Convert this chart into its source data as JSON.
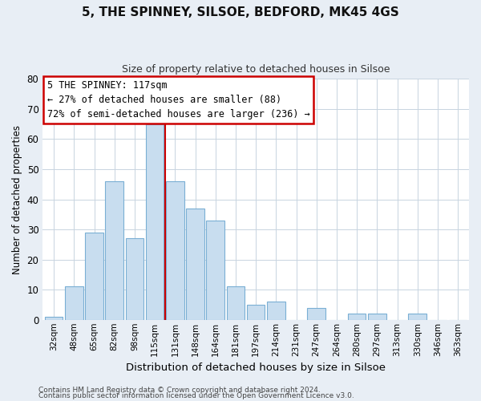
{
  "title": "5, THE SPINNEY, SILSOE, BEDFORD, MK45 4GS",
  "subtitle": "Size of property relative to detached houses in Silsoe",
  "xlabel": "Distribution of detached houses by size in Silsoe",
  "ylabel": "Number of detached properties",
  "categories": [
    "32sqm",
    "48sqm",
    "65sqm",
    "82sqm",
    "98sqm",
    "115sqm",
    "131sqm",
    "148sqm",
    "164sqm",
    "181sqm",
    "197sqm",
    "214sqm",
    "231sqm",
    "247sqm",
    "264sqm",
    "280sqm",
    "297sqm",
    "313sqm",
    "330sqm",
    "346sqm",
    "363sqm"
  ],
  "values": [
    1,
    11,
    29,
    46,
    27,
    65,
    46,
    37,
    33,
    11,
    5,
    6,
    0,
    4,
    0,
    2,
    2,
    0,
    2,
    0,
    0
  ],
  "bar_color": "#c8ddef",
  "bar_edge_color": "#7aafd4",
  "highlight_index": 5,
  "highlight_line_color": "#cc0000",
  "ylim": [
    0,
    80
  ],
  "yticks": [
    0,
    10,
    20,
    30,
    40,
    50,
    60,
    70,
    80
  ],
  "annotation_box_text": "5 THE SPINNEY: 117sqm\n← 27% of detached houses are smaller (88)\n72% of semi-detached houses are larger (236) →",
  "annotation_box_color": "#ffffff",
  "annotation_box_edge_color": "#cc0000",
  "footer_line1": "Contains HM Land Registry data © Crown copyright and database right 2024.",
  "footer_line2": "Contains public sector information licensed under the Open Government Licence v3.0.",
  "background_color": "#e8eef5",
  "plot_background_color": "#ffffff",
  "grid_color": "#c8d4e0"
}
